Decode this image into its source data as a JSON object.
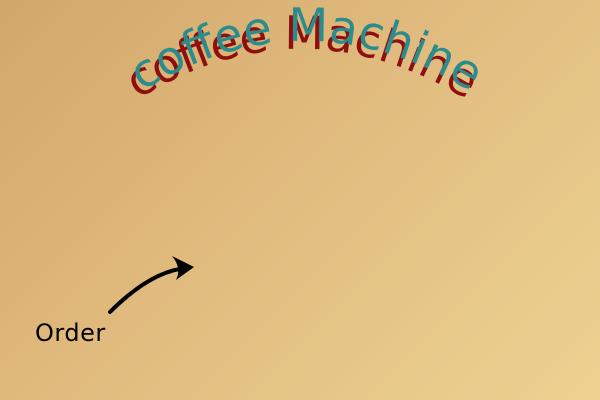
{
  "title": {
    "text": "coffee Machine",
    "front_color": "#2a8c8c",
    "shadow_color": "#8f0e0e"
  },
  "order": {
    "label": "Order",
    "pointer_icon": "curved-arrow-icon"
  },
  "colors": {
    "background_start": "#d2a86a",
    "background_end": "#edd292"
  }
}
